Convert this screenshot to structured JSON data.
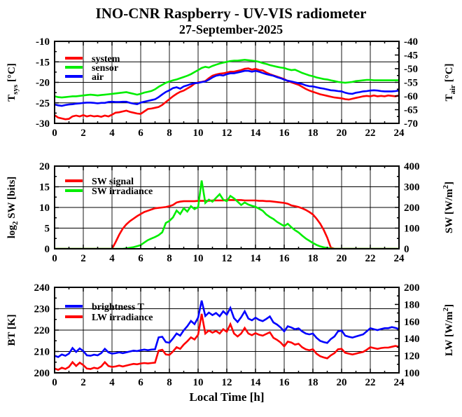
{
  "title": {
    "line1": "INO-CNR Raspberry - UV-VIS radiometer",
    "line2": "27-September-2025"
  },
  "xlabel": "Local Time [h]",
  "colors": {
    "red": "#ff0000",
    "green": "#00ee00",
    "blue": "#0000ff",
    "axis": "#000000",
    "background": "#ffffff"
  },
  "chart_data": [
    {
      "type": "line",
      "name": "temperature-panel",
      "x": {
        "range": [
          0,
          24
        ],
        "step_per_point": 0.25,
        "major_tick": 2,
        "minor_tick": 1,
        "tick_labels": [
          "0",
          "2",
          "4",
          "6",
          "8",
          "10",
          "12",
          "14",
          "16",
          "18",
          "20",
          "22",
          "24"
        ]
      },
      "left_axis": {
        "title_parts": [
          {
            "t": "T"
          },
          {
            "t": "sys",
            "shift": "sub"
          },
          {
            "t": " [°C]"
          }
        ],
        "range": [
          -30,
          -10
        ],
        "ticks": [
          -30,
          -25,
          -20,
          -15,
          -10
        ],
        "tick_labels": [
          "-30",
          "-25",
          "-20",
          "-15",
          "-10"
        ],
        "minor_step": 2.5
      },
      "right_axis": {
        "title_parts": [
          {
            "t": "T"
          },
          {
            "t": "air",
            "shift": "sub"
          },
          {
            "t": " [°C]"
          }
        ],
        "range": [
          -70,
          -40
        ],
        "ticks": [
          -70,
          -65,
          -60,
          -55,
          -50,
          -45,
          -40
        ],
        "tick_labels": [
          "-70",
          "-65",
          "-60",
          "-55",
          "-50",
          "-45",
          "-40"
        ],
        "minor_step": 2.5
      },
      "grid_left_values": [
        -25,
        -20,
        -15
      ],
      "legend": [
        {
          "label": "system",
          "color": "#ff0000"
        },
        {
          "label": "sensor",
          "color": "#00ee00"
        },
        {
          "label": "air",
          "color": "#0000ff"
        }
      ],
      "series": [
        {
          "name": "system",
          "color": "#ff0000",
          "axis": "left",
          "values": [
            -28.0,
            -28.6,
            -28.8,
            -29.0,
            -28.9,
            -28.3,
            -28.1,
            -28.3,
            -28.0,
            -28.3,
            -28.1,
            -28.3,
            -28.2,
            -28.4,
            -28.1,
            -28.3,
            -27.9,
            -27.4,
            -27.3,
            -27.1,
            -26.9,
            -27.2,
            -27.4,
            -27.6,
            -27.7,
            -27.1,
            -26.5,
            -26.4,
            -26.2,
            -26.0,
            -25.5,
            -24.8,
            -24.1,
            -23.4,
            -22.8,
            -22.3,
            -22.0,
            -21.5,
            -21.0,
            -20.3,
            -20.0,
            -19.9,
            -19.7,
            -19.0,
            -18.4,
            -18.1,
            -17.9,
            -17.8,
            -17.6,
            -17.4,
            -17.4,
            -17.2,
            -17.0,
            -16.7,
            -16.6,
            -16.9,
            -16.7,
            -17.0,
            -17.1,
            -17.6,
            -18.0,
            -18.3,
            -18.6,
            -18.9,
            -19.2,
            -19.7,
            -20.0,
            -20.3,
            -20.6,
            -21.1,
            -21.6,
            -22.0,
            -22.3,
            -22.6,
            -22.9,
            -23.1,
            -23.3,
            -23.5,
            -23.7,
            -23.8,
            -23.9,
            -24.1,
            -24.2,
            -24.0,
            -23.8,
            -23.6,
            -23.4,
            -23.3,
            -23.4,
            -23.2,
            -23.4,
            -23.3,
            -23.4,
            -23.2,
            -23.3,
            -23.4,
            -23.2
          ]
        },
        {
          "name": "sensor",
          "color": "#00ee00",
          "axis": "left",
          "values": [
            -23.4,
            -23.6,
            -23.7,
            -23.6,
            -23.5,
            -23.4,
            -23.4,
            -23.3,
            -23.2,
            -23.1,
            -23.0,
            -23.1,
            -23.2,
            -23.1,
            -23.0,
            -22.9,
            -22.8,
            -22.7,
            -22.6,
            -22.5,
            -22.4,
            -22.6,
            -22.8,
            -23.0,
            -22.8,
            -22.5,
            -22.3,
            -22.1,
            -21.7,
            -21.1,
            -20.6,
            -20.1,
            -19.8,
            -19.5,
            -19.3,
            -19.0,
            -18.7,
            -18.4,
            -18.0,
            -17.5,
            -17.0,
            -16.5,
            -16.2,
            -16.4,
            -16.0,
            -15.7,
            -15.4,
            -15.2,
            -15.0,
            -14.8,
            -14.7,
            -14.7,
            -14.6,
            -14.5,
            -14.6,
            -14.7,
            -14.8,
            -15.0,
            -15.3,
            -15.5,
            -15.8,
            -16.0,
            -16.2,
            -16.4,
            -16.5,
            -16.8,
            -17.0,
            -16.9,
            -17.3,
            -17.7,
            -18.0,
            -18.3,
            -18.5,
            -18.8,
            -19.0,
            -19.2,
            -19.3,
            -19.5,
            -19.7,
            -19.9,
            -20.0,
            -20.1,
            -20.0,
            -19.9,
            -19.7,
            -19.6,
            -19.5,
            -19.4,
            -19.4,
            -19.5,
            -19.5,
            -19.5,
            -19.5,
            -19.5,
            -19.5,
            -19.5,
            -19.5
          ]
        },
        {
          "name": "air",
          "color": "#0000ff",
          "axis": "right",
          "values": [
            -63.1,
            -63.4,
            -63.6,
            -63.3,
            -63.1,
            -63.0,
            -62.8,
            -62.7,
            -62.5,
            -62.4,
            -62.4,
            -62.5,
            -62.7,
            -62.5,
            -62.5,
            -62.2,
            -62.1,
            -62.2,
            -62.2,
            -62.1,
            -62.1,
            -62.5,
            -62.8,
            -63.0,
            -62.4,
            -62.1,
            -61.8,
            -61.5,
            -61.2,
            -60.4,
            -59.4,
            -58.5,
            -57.9,
            -57.1,
            -56.8,
            -57.3,
            -56.5,
            -56.1,
            -55.6,
            -55.3,
            -55.2,
            -54.9,
            -54.7,
            -54.0,
            -53.2,
            -52.6,
            -52.3,
            -52.5,
            -52.0,
            -51.7,
            -51.7,
            -51.4,
            -51.1,
            -50.8,
            -50.8,
            -51.1,
            -50.8,
            -51.1,
            -51.6,
            -52.0,
            -52.3,
            -52.6,
            -53.1,
            -53.5,
            -54.0,
            -54.4,
            -54.7,
            -55.0,
            -55.3,
            -55.6,
            -56.1,
            -56.4,
            -56.5,
            -56.8,
            -57.1,
            -57.3,
            -57.6,
            -57.9,
            -58.0,
            -58.2,
            -58.3,
            -58.8,
            -59.1,
            -59.2,
            -58.8,
            -58.6,
            -58.3,
            -58.2,
            -58.0,
            -57.9,
            -58.0,
            -58.2,
            -58.3,
            -58.3,
            -58.3,
            -58.2,
            -58.0
          ]
        }
      ]
    },
    {
      "type": "line",
      "name": "shortwave-panel",
      "x": {
        "range": [
          0,
          24
        ],
        "step_per_point": 0.25,
        "major_tick": 2,
        "minor_tick": 1,
        "tick_labels": [
          "0",
          "2",
          "4",
          "6",
          "8",
          "10",
          "12",
          "14",
          "16",
          "18",
          "20",
          "22",
          "24"
        ]
      },
      "left_axis": {
        "title_parts": [
          {
            "t": "log"
          },
          {
            "t": "2",
            "shift": "sub"
          },
          {
            "t": " SW [bits]"
          }
        ],
        "range": [
          0,
          20
        ],
        "ticks": [
          0,
          5,
          10,
          15,
          20
        ],
        "tick_labels": [
          "0",
          "5",
          "10",
          "15",
          "20"
        ],
        "minor_step": 2.5
      },
      "right_axis": {
        "title_parts": [
          {
            "t": "SW [W/m"
          },
          {
            "t": "2",
            "shift": "sup"
          },
          {
            "t": "]"
          }
        ],
        "range": [
          0,
          400
        ],
        "ticks": [
          0,
          100,
          200,
          300,
          400
        ],
        "tick_labels": [
          "0",
          "100",
          "200",
          "300",
          "400"
        ],
        "minor_step": 50
      },
      "grid_left_values": [
        5,
        10,
        15
      ],
      "legend": [
        {
          "label": "SW signal",
          "color": "#ff0000"
        },
        {
          "label": "SW irradiance",
          "color": "#00ee00"
        }
      ],
      "series": [
        {
          "name": "SW signal",
          "color": "#ff0000",
          "axis": "left",
          "values": [
            0,
            0,
            0,
            0,
            0,
            0,
            0,
            0,
            0,
            0,
            0,
            0,
            0,
            0,
            0,
            0,
            0,
            1.6,
            3.4,
            4.9,
            5.9,
            6.7,
            7.3,
            7.9,
            8.4,
            8.9,
            9.2,
            9.5,
            9.8,
            9.9,
            10.0,
            10.1,
            10.3,
            10.6,
            11.2,
            11.4,
            11.5,
            11.5,
            11.5,
            11.5,
            11.6,
            11.6,
            11.6,
            11.6,
            11.7,
            11.7,
            11.7,
            11.7,
            11.8,
            11.8,
            11.8,
            11.8,
            11.8,
            11.7,
            11.7,
            11.7,
            11.7,
            11.6,
            11.6,
            11.5,
            11.5,
            11.4,
            11.3,
            11.2,
            11.1,
            10.9,
            10.5,
            10.3,
            10.1,
            9.8,
            9.4,
            8.9,
            8.3,
            7.3,
            6.1,
            4.6,
            2.7,
            0.3,
            0,
            0,
            0,
            0,
            0,
            0,
            0,
            0,
            0,
            0,
            0,
            0,
            0,
            0,
            0,
            0,
            0,
            0,
            0
          ]
        },
        {
          "name": "SW irradiance",
          "color": "#00ee00",
          "axis": "right",
          "values": [
            0,
            0,
            0,
            0,
            0,
            0,
            0,
            0,
            0,
            0,
            0,
            0,
            0,
            0,
            0,
            0,
            0,
            0,
            0,
            0,
            2,
            5,
            8,
            13,
            18,
            30,
            42,
            50,
            57,
            66,
            80,
            125,
            135,
            152,
            185,
            168,
            196,
            180,
            206,
            192,
            202,
            330,
            222,
            238,
            228,
            246,
            264,
            238,
            230,
            256,
            244,
            228,
            212,
            224,
            214,
            208,
            203,
            194,
            184,
            166,
            154,
            144,
            130,
            120,
            110,
            121,
            104,
            90,
            79,
            64,
            50,
            39,
            28,
            19,
            12,
            7,
            4,
            1,
            0,
            0,
            0,
            0,
            0,
            0,
            0,
            0,
            0,
            0,
            0,
            0,
            0,
            0,
            0,
            0,
            0,
            0,
            0
          ]
        }
      ]
    },
    {
      "type": "line",
      "name": "longwave-panel",
      "x": {
        "range": [
          0,
          24
        ],
        "step_per_point": 0.25,
        "major_tick": 2,
        "minor_tick": 1,
        "tick_labels": [
          "0",
          "2",
          "4",
          "6",
          "8",
          "10",
          "12",
          "14",
          "16",
          "18",
          "20",
          "22",
          "24"
        ]
      },
      "left_axis": {
        "title_parts": [
          {
            "t": "BT [K]"
          }
        ],
        "range": [
          200,
          240
        ],
        "ticks": [
          200,
          210,
          220,
          230,
          240
        ],
        "tick_labels": [
          "200",
          "210",
          "220",
          "230",
          "240"
        ],
        "minor_step": 5
      },
      "right_axis": {
        "title_parts": [
          {
            "t": "LW [W/m"
          },
          {
            "t": "2",
            "shift": "sup"
          },
          {
            "t": "]"
          }
        ],
        "range": [
          100,
          200
        ],
        "ticks": [
          100,
          120,
          140,
          160,
          180,
          200
        ],
        "tick_labels": [
          "100",
          "120",
          "140",
          "160",
          "180",
          "200"
        ],
        "minor_step": 10
      },
      "grid_left_values": [
        210,
        220,
        230
      ],
      "legend": [
        {
          "label": "brightness T",
          "color": "#0000ff"
        },
        {
          "label": "LW irradiance",
          "color": "#ff0000"
        }
      ],
      "series": [
        {
          "name": "brightness T",
          "color": "#0000ff",
          "axis": "left",
          "values": [
            208.0,
            207.4,
            208.6,
            208.0,
            209.0,
            211.6,
            209.8,
            211.4,
            210.2,
            208.2,
            208.0,
            208.5,
            208.2,
            209.2,
            211.2,
            209.6,
            209.0,
            209.2,
            209.6,
            209.2,
            209.6,
            210.0,
            210.4,
            210.2,
            210.6,
            210.9,
            210.6,
            210.9,
            211.0,
            216.6,
            216.9,
            214.4,
            214.1,
            216.1,
            218.4,
            217.4,
            219.9,
            221.8,
            224.3,
            222.8,
            225.8,
            233.8,
            226.6,
            228.2,
            227.0,
            228.0,
            226.5,
            228.8,
            227.2,
            230.4,
            225.6,
            223.8,
            226.0,
            228.8,
            225.4,
            224.6,
            225.8,
            224.8,
            224.2,
            225.2,
            226.4,
            223.6,
            222.6,
            221.2,
            219.4,
            221.8,
            221.2,
            220.4,
            220.8,
            219.4,
            218.4,
            218.0,
            218.4,
            216.4,
            215.0,
            214.4,
            214.0,
            215.8,
            217.0,
            219.4,
            219.8,
            217.4,
            216.9,
            216.5,
            217.0,
            217.5,
            218.0,
            219.4,
            220.9,
            220.4,
            220.0,
            220.5,
            220.9,
            220.9,
            221.4,
            221.0,
            220.5
          ]
        },
        {
          "name": "LW irradiance",
          "color": "#ff0000",
          "axis": "right",
          "values": [
            105,
            103.5,
            106,
            104.5,
            107,
            112.5,
            108,
            112,
            109,
            105,
            104.5,
            106,
            105,
            107.5,
            112.5,
            108,
            107,
            107.5,
            108.5,
            107.5,
            108.5,
            109.5,
            110.5,
            110,
            111,
            111.5,
            111,
            111.5,
            112,
            126,
            127,
            121.5,
            121,
            125,
            130,
            128,
            133,
            137,
            141.5,
            139,
            144.5,
            169,
            146,
            149.5,
            147,
            149,
            146,
            151,
            148,
            157,
            146,
            142.5,
            146,
            152.5,
            146,
            144,
            146.5,
            144.5,
            143.5,
            145.5,
            147.5,
            141,
            138.5,
            135.5,
            131,
            136.5,
            135.5,
            133,
            134,
            130,
            127.5,
            126.5,
            127.5,
            122.5,
            119.5,
            118,
            117,
            120.5,
            123,
            127.5,
            128,
            123.5,
            122.5,
            121.5,
            122.5,
            123.5,
            124.5,
            127,
            130,
            129,
            128,
            129,
            129.5,
            129.5,
            130.5,
            131.5,
            130.5
          ]
        }
      ]
    }
  ]
}
